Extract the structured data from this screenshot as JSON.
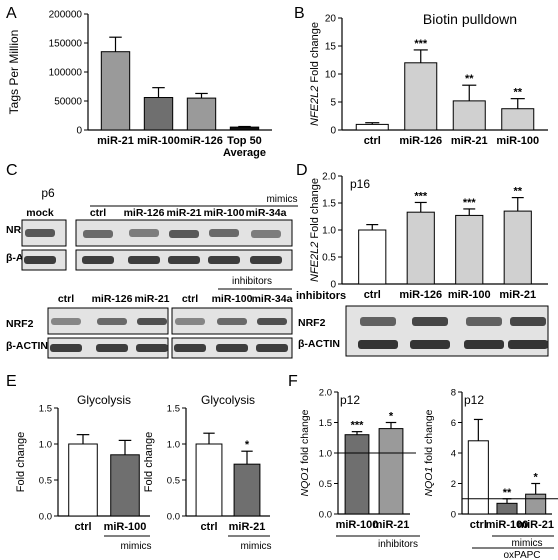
{
  "colors": {
    "bar_dark": "#6f6f6f",
    "bar_mid": "#9a9a9a",
    "bar_light": "#d0d0d0",
    "bar_white": "#ffffff",
    "bar_black": "#111111",
    "blot_bg": "#e3e3e3",
    "band": "#2a2a2a"
  },
  "panelA": {
    "letter": "A",
    "chart_data": {
      "type": "bar",
      "categories": [
        "miR-21",
        "miR-100",
        "miR-126",
        "Top 50 Average"
      ],
      "values": [
        135000,
        56000,
        55000,
        5000
      ],
      "errors": [
        25000,
        17000,
        8000,
        1000
      ],
      "ylabel": "Tags Per Million",
      "ylim": [
        0,
        200000
      ],
      "yticks": [
        "0",
        "50000",
        "100000",
        "150000",
        "200000"
      ]
    }
  },
  "panelB": {
    "letter": "B",
    "chart_data": {
      "type": "bar",
      "title": "Biotin pulldown",
      "ylabel_italic": "NFE2L2",
      "ylabel_rest": " Fold change",
      "categories": [
        "ctrl",
        "miR-126",
        "miR-21",
        "miR-100"
      ],
      "values": [
        1,
        12,
        5.2,
        3.8
      ],
      "errors": [
        0.3,
        2.3,
        2.8,
        1.8
      ],
      "ylim": [
        0,
        20
      ],
      "yticks": [
        "0",
        "5",
        "10",
        "15",
        "20"
      ],
      "significance": [
        "",
        "***",
        "**",
        "**"
      ]
    }
  },
  "panelC": {
    "letter": "C",
    "passage": "p6",
    "mimics_label": "mimics",
    "inhibitors_label": "inhibitors",
    "top_lanes": [
      "mock",
      "ctrl",
      "miR-126",
      "miR-21",
      "miR-100",
      "miR-34a"
    ],
    "bottom_lanes": [
      "ctrl",
      "miR-126",
      "miR-21",
      "ctrl",
      "miR-100",
      "miR-34a"
    ],
    "row_labels": [
      "NRF2",
      "β-ACTIN"
    ]
  },
  "panelD": {
    "letter": "D",
    "chart_data": {
      "type": "bar",
      "passage": "p16",
      "ylabel_italic": "NFE2L2",
      "ylabel_rest": " Fold change",
      "categories": [
        "ctrl",
        "miR-126",
        "miR-100",
        "miR-21"
      ],
      "values": [
        1,
        1.33,
        1.27,
        1.35
      ],
      "errors": [
        0.1,
        0.18,
        0.12,
        0.25
      ],
      "ylim": [
        0,
        2.0
      ],
      "yticks": [
        "0",
        "0.5",
        "1.0",
        "1.5",
        "2.0"
      ],
      "significance": [
        "",
        "***",
        "***",
        "**"
      ]
    },
    "inhibitors_label": "inhibitors",
    "row_labels": [
      "NRF2",
      "β-ACTIN"
    ]
  },
  "panelE": {
    "letter": "E",
    "charts": [
      {
        "type": "bar",
        "title": "Glycolysis",
        "ylabel": "Fold change",
        "categories": [
          "ctrl",
          "miR-100"
        ],
        "values": [
          1.0,
          0.85
        ],
        "errors": [
          0.13,
          0.2
        ],
        "ylim": [
          0,
          1.5
        ],
        "yticks": [
          "0.0",
          "0.5",
          "1.0",
          "1.5"
        ],
        "significance": [
          "",
          ""
        ],
        "group_label": "mimics"
      },
      {
        "type": "bar",
        "title": "Glycolysis",
        "ylabel": "Fold change",
        "categories": [
          "ctrl",
          "miR-21"
        ],
        "values": [
          1.0,
          0.72
        ],
        "errors": [
          0.15,
          0.18
        ],
        "ylim": [
          0,
          1.5
        ],
        "yticks": [
          "0.0",
          "0.5",
          "1.0",
          "1.5"
        ],
        "significance": [
          "",
          "*"
        ],
        "group_label": "mimics"
      }
    ]
  },
  "panelF": {
    "letter": "F",
    "charts": [
      {
        "type": "bar",
        "passage": "p12",
        "ylabel_italic": "NQO1",
        "ylabel_rest": " fold change",
        "categories": [
          "miR-100",
          "miR-21"
        ],
        "values": [
          1.3,
          1.4
        ],
        "errors": [
          0.05,
          0.1
        ],
        "ylim": [
          0,
          2.0
        ],
        "yticks": [
          "0.0",
          "0.5",
          "1.0",
          "1.5",
          "2.0"
        ],
        "significance": [
          "***",
          "*"
        ],
        "group_label": "inhibitors"
      },
      {
        "type": "bar",
        "passage": "p12",
        "ylabel_italic": "NQO1",
        "ylabel_rest": " fold change",
        "categories": [
          "ctrl",
          "miR-100",
          "miR-21"
        ],
        "values": [
          4.8,
          0.7,
          1.3
        ],
        "errors": [
          1.4,
          0.3,
          0.7
        ],
        "ylim": [
          0,
          8
        ],
        "yticks": [
          "0",
          "2",
          "4",
          "6",
          "8"
        ],
        "significance": [
          "",
          "**",
          "*"
        ],
        "group_label": "mimics",
        "group_label2": "oxPAPC"
      }
    ]
  }
}
